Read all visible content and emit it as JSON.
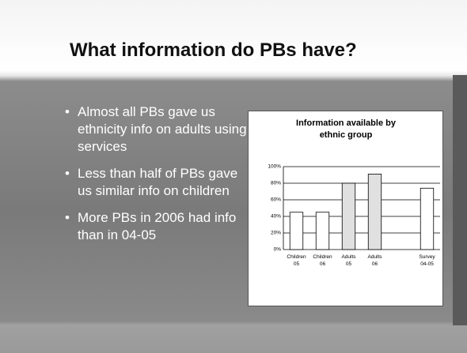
{
  "title": "What information do PBs have?",
  "bullets": [
    "Almost all PBs gave us ethnicity info on adults using services",
    "Less than half of PBs gave us similar info on children",
    "More PBs in 2006 had info than in 04-05"
  ],
  "chart_data": {
    "type": "bar",
    "title": "Information available by ethnic group",
    "categories": [
      [
        "Children",
        "05"
      ],
      [
        "Children",
        "06"
      ],
      [
        "Adults",
        "05"
      ],
      [
        "Adults",
        "06"
      ],
      null,
      [
        "Survey",
        "04-05"
      ]
    ],
    "values": [
      45,
      45,
      80,
      91,
      null,
      74
    ],
    "colors": [
      "#ffffff",
      "#ffffff",
      "#e0e0e0",
      "#e0e0e0",
      null,
      "#ffffff"
    ],
    "ylim": [
      0,
      100
    ],
    "yticks": [
      {
        "value": 0,
        "label": "0%"
      },
      {
        "value": 20,
        "label": "20%"
      },
      {
        "value": 40,
        "label": "40%"
      },
      {
        "value": 60,
        "label": "60%"
      },
      {
        "value": 80,
        "label": "80%"
      },
      {
        "value": 100,
        "label": "100%"
      }
    ],
    "grid": true
  }
}
